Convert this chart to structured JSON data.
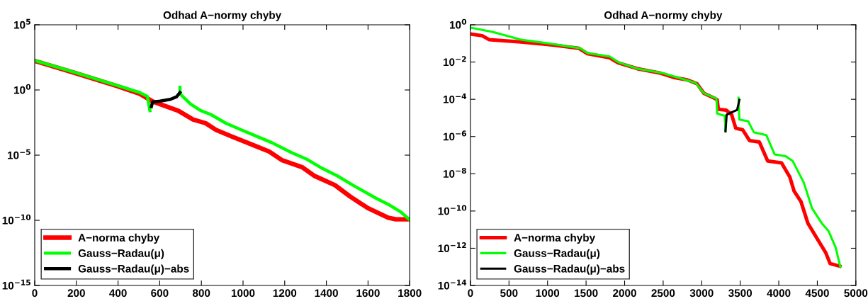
{
  "chart_data": [
    {
      "type": "line",
      "title": "Odhad A−normy chyby",
      "log": "y",
      "grid": false,
      "legend": "bottom left",
      "marker": "none",
      "line_style": "solid",
      "xlim": [
        0,
        1800
      ],
      "xticks": [
        0,
        200,
        400,
        600,
        800,
        1000,
        1200,
        1400,
        1600,
        1800
      ],
      "ylim": [
        1e-15,
        100000.0
      ],
      "yticks": [
        {
          "value": 1e-15,
          "label": "10$^{−15}$"
        },
        {
          "value": 1e-10,
          "label": "10$^{−10}$"
        },
        {
          "value": 1e-05,
          "label": "10$^{−5}$"
        },
        {
          "value": 1,
          "label": "10$^{0}$"
        },
        {
          "value": 100000.0,
          "label": "10$^{5}$"
        }
      ],
      "series": [
        {
          "name": "A−norma chyby",
          "color": "#ff0000",
          "x": [
            0,
            189,
            395,
            505,
            566,
            688,
            760,
            821,
            870,
            943,
            1065,
            1125,
            1186,
            1283,
            1344,
            1441,
            1515,
            1600,
            1697,
            1734,
            1800
          ],
          "values": [
            170,
            21,
            2.0,
            0.5,
            0.13,
            0.026,
            0.0054,
            0.0028,
            0.00087,
            0.00028,
            4.6e-05,
            1.9e-05,
            4.2e-06,
            1.2e-06,
            2.5e-07,
            5e-08,
            6.5e-09,
            8.5e-10,
            1.6e-10,
            1.2e-10,
            1.2e-10
          ]
        },
        {
          "name": "Gauss−Radau(μ)",
          "color": "#00ff00",
          "x": [
            0,
            189,
            395,
            505,
            541,
            553,
            620,
            697,
            698,
            748,
            797,
            846,
            918,
            991,
            1065,
            1138,
            1235,
            1308,
            1381,
            1454,
            1527,
            1636,
            1697,
            1758,
            1800
          ],
          "values": [
            180,
            23,
            2.2,
            0.63,
            0.32,
            0.026,
            null,
            1.6,
            0.5,
            0.083,
            0.026,
            0.013,
            0.0028,
            0.00087,
            0.00028,
            9.1e-05,
            1.5e-05,
            4.7e-06,
            9.5e-07,
            2.5e-07,
            5e-08,
            5.2e-09,
            1.7e-09,
            4.3e-10,
            1.1e-10
          ]
        },
        {
          "name": "Gauss−Radau(μ)−abs",
          "color": "#000000",
          "x": [
            560,
            566,
            602,
            651,
            681,
            697
          ],
          "values": [
            0.052,
            0.12,
            0.14,
            0.19,
            0.3,
            0.63
          ]
        }
      ]
    },
    {
      "type": "line",
      "title": "Odhad A−normy chyby",
      "log": "y",
      "grid": false,
      "legend": "bottom left",
      "marker": "none",
      "line_style": "solid",
      "xlim": [
        0,
        5000
      ],
      "xticks": [
        0,
        500,
        1000,
        1500,
        2000,
        2500,
        3000,
        3500,
        4000,
        4500,
        5000
      ],
      "ylim": [
        1e-14,
        1
      ],
      "yticks": [
        {
          "value": 1e-14,
          "label": "10$^{−14}$"
        },
        {
          "value": 1e-12,
          "label": "10$^{−12}$"
        },
        {
          "value": 1e-10,
          "label": "10$^{−10}$"
        },
        {
          "value": 1e-08,
          "label": "10$^{−8}$"
        },
        {
          "value": 1e-06,
          "label": "10$^{−6}$"
        },
        {
          "value": 0.0001,
          "label": "10$^{−4}$"
        },
        {
          "value": 0.01,
          "label": "10$^{−2}$"
        },
        {
          "value": 1,
          "label": "10$^{0}$"
        }
      ],
      "series": [
        {
          "name": "A−norma chyby",
          "color": "#ff0000",
          "x": [
            0,
            151,
            241,
            655,
            1086,
            1410,
            1518,
            1806,
            1914,
            2165,
            2453,
            2633,
            2813,
            2939,
            3029,
            3173,
            3201,
            3216,
            3317,
            3388,
            3442,
            3532,
            3622,
            3748,
            3856,
            4036,
            4144,
            4198,
            4288,
            4378,
            4504,
            4612,
            4666,
            4791
          ],
          "values": [
            0.32,
            0.26,
            0.16,
            0.12,
            0.081,
            0.054,
            0.028,
            0.017,
            0.0091,
            0.0044,
            0.0026,
            0.0015,
            0.0011,
            0.00069,
            0.00021,
            0.00011,
            9.3e-05,
            2.9e-05,
            2.6e-05,
            1.5e-05,
            2.8e-06,
            2.3e-06,
            6e-07,
            5.1e-07,
            4.9e-08,
            3.8e-08,
            6.6e-09,
            1.2e-09,
            3.2e-10,
            2.2e-11,
            3e-12,
            5.5e-13,
            1.5e-13,
            1.1e-13
          ]
        },
        {
          "name": "Gauss−Radau(μ)",
          "color": "#00ff00",
          "x": [
            0,
            295,
            655,
            1014,
            1428,
            1518,
            1806,
            1914,
            2165,
            2489,
            2921,
            3029,
            3191,
            3201,
            3299,
            3309,
            3400,
            3478,
            3489,
            3604,
            3676,
            3838,
            3946,
            4090,
            4180,
            4324,
            4432,
            4558,
            4648,
            4738,
            4799
          ],
          "values": [
            0.71,
            0.41,
            0.16,
            0.1,
            0.054,
            0.03,
            0.02,
            0.01,
            0.0044,
            0.0026,
            0.00076,
            0.00021,
            0.00011,
            1.7e-05,
            1.3e-05,
            1.9e-06,
            null,
            0.00012,
            8.1e-06,
            6.5e-06,
            1.7e-06,
            1.2e-06,
            1.1e-07,
            8.7e-08,
            4.9e-08,
            3.4e-09,
            1.4e-10,
            2.2e-11,
            8.1e-12,
            1.1e-12,
            9.8e-14
          ]
        },
        {
          "name": "Gauss−Radau(μ)−abs",
          "color": "#000000",
          "x": [
            3309,
            3324,
            3388,
            3460,
            3489
          ],
          "values": [
            1.9e-06,
            1.5e-05,
            2e-05,
            2.7e-05,
            9.3e-05
          ]
        }
      ]
    }
  ]
}
